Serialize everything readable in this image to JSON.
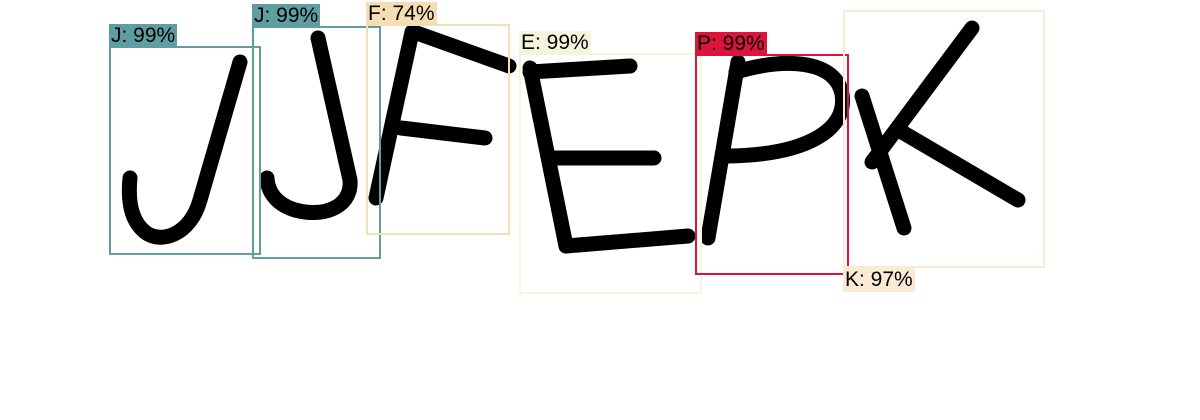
{
  "detections": [
    {
      "letter": "J",
      "confidence": "99%",
      "label": "J: 99%",
      "color": "#5f9ea0",
      "label_position": "top",
      "label_text_color": "#000000"
    },
    {
      "letter": "J",
      "confidence": "99%",
      "label": "J: 99%",
      "color": "#5f9ea0",
      "label_position": "top",
      "label_text_color": "#000000"
    },
    {
      "letter": "F",
      "confidence": "74%",
      "label": "F: 74%",
      "color": "#f5deb3",
      "label_position": "top",
      "label_text_color": "#000000"
    },
    {
      "letter": "E",
      "confidence": "99%",
      "label": "E: 99%",
      "color": "#f5f5dc",
      "label_position": "top",
      "label_text_color": "#000000"
    },
    {
      "letter": "P",
      "confidence": "99%",
      "label": "P: 99%",
      "color": "#dc143c",
      "label_position": "top",
      "label_text_color": "#000000"
    },
    {
      "letter": "K",
      "confidence": "97%",
      "label": "K: 97%",
      "color": "#faebd7",
      "label_position": "bottom",
      "label_text_color": "#000000"
    }
  ],
  "image": {
    "description_text": "JJFEPK"
  }
}
